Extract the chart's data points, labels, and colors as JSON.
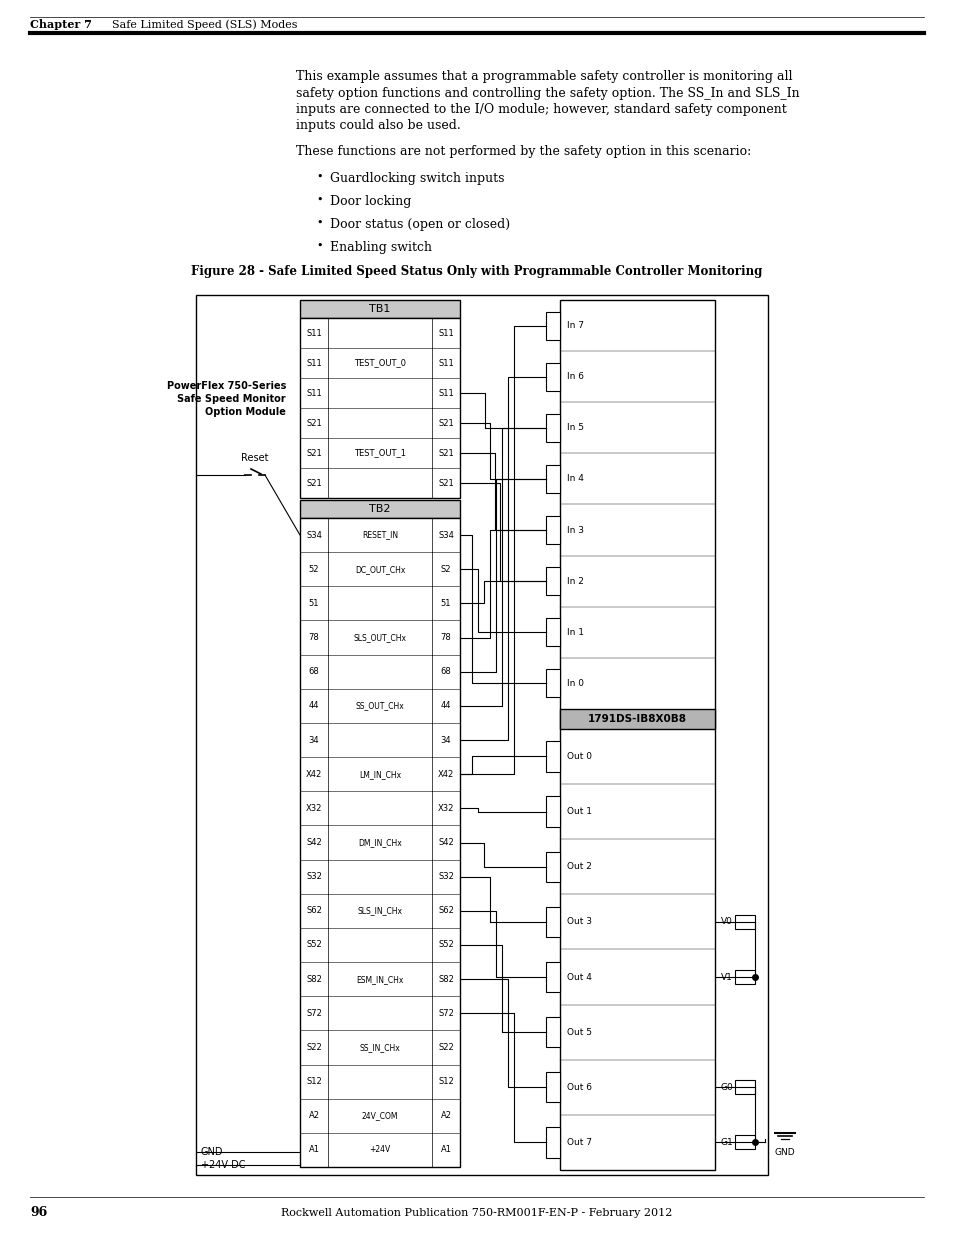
{
  "page_number": "96",
  "footer_text": "Rockwell Automation Publication 750-RM001F-EN-P - February 2012",
  "header_chapter": "Chapter 7",
  "header_title": "Safe Limited Speed (SLS) Modes",
  "body_para1_lines": [
    "This example assumes that a programmable safety controller is monitoring all",
    "safety option functions and controlling the safety option. The SS_In and SLS_In",
    "inputs are connected to the I/O module; however, standard safety component",
    "inputs could also be used."
  ],
  "body_para2": "These functions are not performed by the safety option in this scenario:",
  "bullets": [
    "Guardlocking switch inputs",
    "Door locking",
    "Door status (open or closed)",
    "Enabling switch"
  ],
  "figure_title": "Figure 28 - Safe Limited Speed Status Only with Programmable Controller Monitoring",
  "bg_color": "#ffffff",
  "tb1_label": "TB1",
  "tb2_label": "TB2",
  "module_lines": [
    "PowerFlex 750-Series",
    "Safe Speed Monitor",
    "Option Module"
  ],
  "io_module_label": "1791DS-IB8X0B8",
  "reset_label": "Reset",
  "gnd_left_label": "GND",
  "plus24_label": "+24V DC",
  "tb1_rows": [
    [
      "S11",
      "",
      "S11"
    ],
    [
      "S11",
      "TEST_OUT_0",
      "S11"
    ],
    [
      "S11",
      "",
      "S11"
    ],
    [
      "S21",
      "",
      "S21"
    ],
    [
      "S21",
      "TEST_OUT_1",
      "S21"
    ],
    [
      "S21",
      "",
      "S21"
    ]
  ],
  "tb2_rows": [
    [
      "S34",
      "RESET_IN",
      "S34"
    ],
    [
      "52",
      "DC_OUT_CHx",
      "S2"
    ],
    [
      "51",
      "",
      "51"
    ],
    [
      "78",
      "SLS_OUT_CHx",
      "78"
    ],
    [
      "68",
      "",
      "68"
    ],
    [
      "44",
      "SS_OUT_CHx",
      "44"
    ],
    [
      "34",
      "",
      "34"
    ],
    [
      "X42",
      "LM_IN_CHx",
      "X42"
    ],
    [
      "X32",
      "",
      "X32"
    ],
    [
      "S42",
      "DM_IN_CHx",
      "S42"
    ],
    [
      "S32",
      "",
      "S32"
    ],
    [
      "S62",
      "SLS_IN_CHx",
      "S62"
    ],
    [
      "S52",
      "",
      "S52"
    ],
    [
      "S82",
      "ESM_IN_CHx",
      "S82"
    ],
    [
      "S72",
      "",
      "S72"
    ],
    [
      "S22",
      "SS_IN_CHx",
      "S22"
    ],
    [
      "S12",
      "",
      "S12"
    ],
    [
      "A2",
      "24V_COM",
      "A2"
    ],
    [
      "A1",
      "+24V",
      "A1"
    ]
  ],
  "inputs": [
    "In 7",
    "In 6",
    "In 5",
    "In 4",
    "In 3",
    "In 2",
    "In 1",
    "In 0"
  ],
  "outputs": [
    "Out 0",
    "Out 1",
    "Out 2",
    "Out 3",
    "Out 4",
    "Out 5",
    "Out 6",
    "Out 7"
  ],
  "vg_labels": [
    "V0",
    "V1",
    "G0",
    "G1"
  ],
  "vg_out_indices": [
    3,
    4,
    6,
    7
  ],
  "vg_dot": [
    false,
    true,
    false,
    true
  ]
}
